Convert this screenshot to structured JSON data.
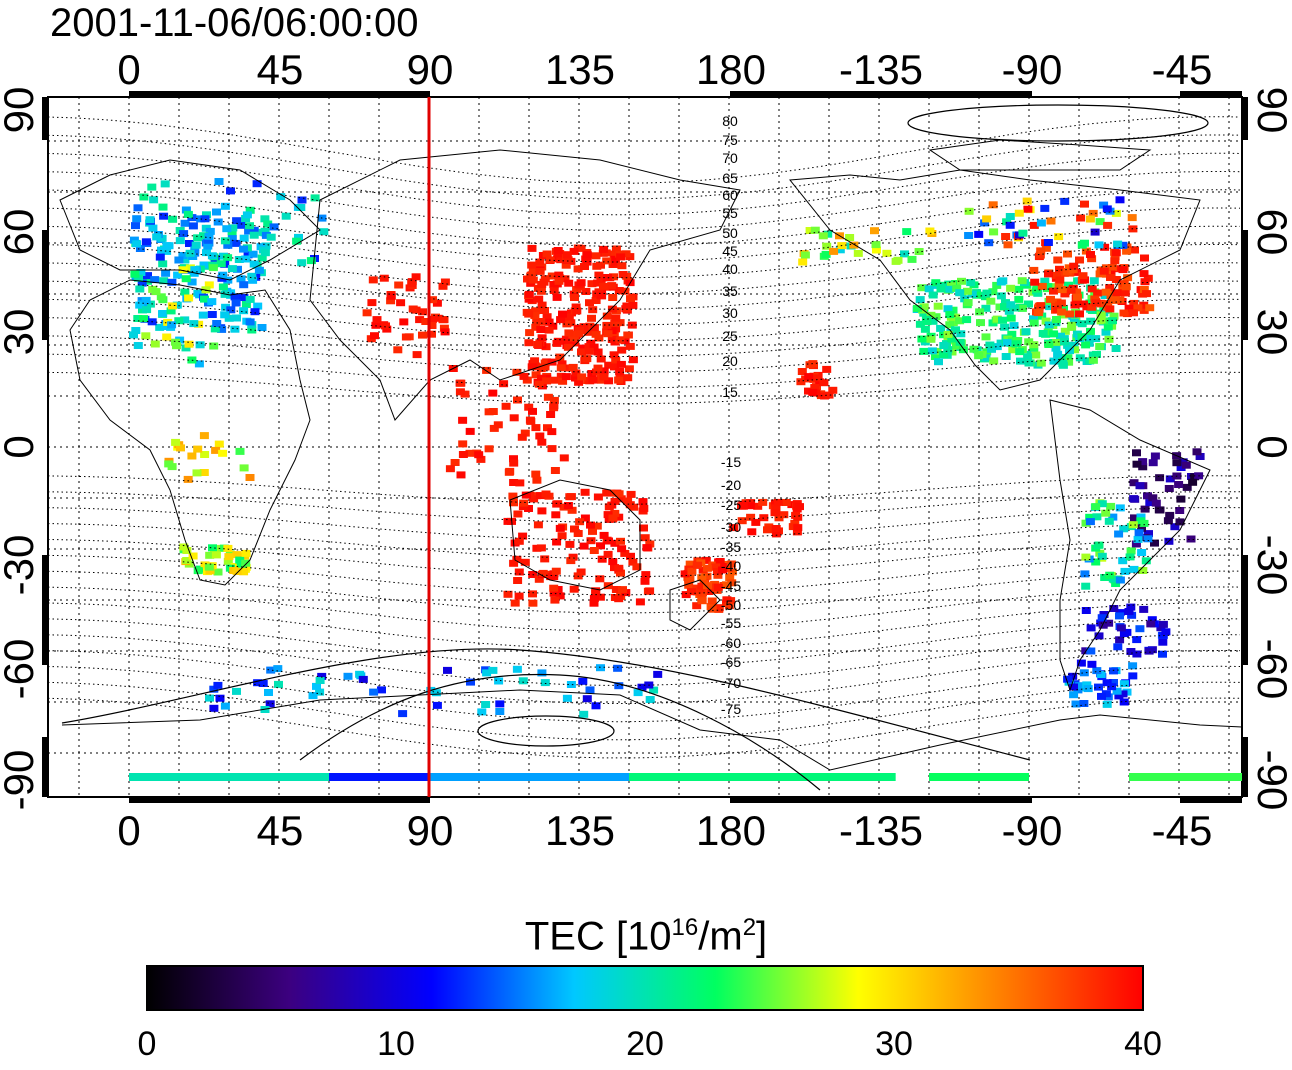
{
  "title": "2001-11-06/06:00:00",
  "colorbar": {
    "label_main": "TEC  [10",
    "label_exp": "16",
    "label_mid": "/m",
    "label_exp2": "2",
    "label_end": "]",
    "min": 0,
    "max": 40,
    "ticks": [
      "0",
      "10",
      "20",
      "30",
      "40"
    ],
    "stops": [
      "#000000",
      "#3c0080",
      "#0000ff",
      "#00c8ff",
      "#00ff60",
      "#ffff00",
      "#ff8000",
      "#ff0000"
    ]
  },
  "map": {
    "lon_ticks": [
      "0",
      "45",
      "90",
      "135",
      "180",
      "-135",
      "-90",
      "-45"
    ],
    "lat_ticks": [
      "90",
      "60",
      "30",
      "0",
      "-30",
      "-60",
      "-90"
    ],
    "marker_longitude": 90,
    "marker_color": "#e00000",
    "contour_labels_north": [
      "80",
      "75",
      "70",
      "65",
      "60",
      "55",
      "50",
      "45",
      "40",
      "35",
      "30",
      "25",
      "20",
      "15"
    ],
    "contour_labels_south": [
      "-15",
      "-20",
      "-25",
      "-30",
      "-35",
      "-40",
      "-45",
      "-50",
      "-55",
      "-60",
      "-65",
      "-70",
      "-75"
    ]
  }
}
